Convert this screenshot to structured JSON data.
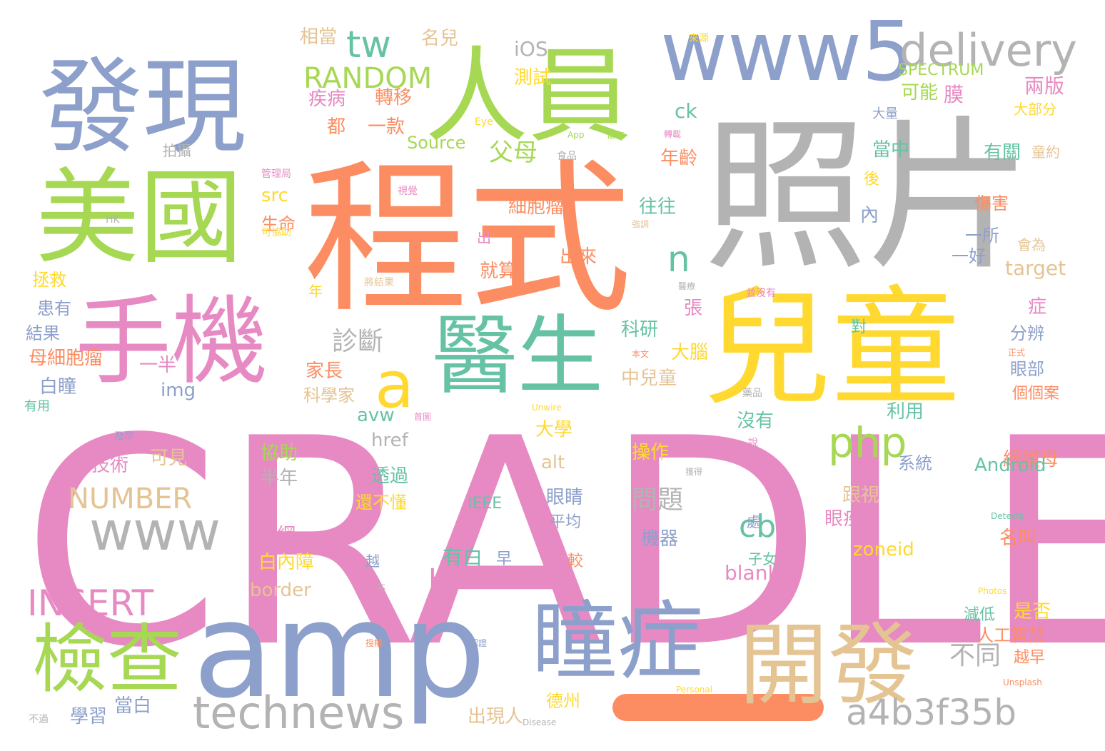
{
  "palette": {
    "background": "#ffffff",
    "pink": "#e78ac3",
    "orange": "#fc8d62",
    "blue": "#8da0cb",
    "green": "#a6d854",
    "teal": "#66c2a5",
    "yellow": "#ffd92f",
    "tan": "#e5c494",
    "gray": "#b3b3b3"
  },
  "words": [
    {
      "text": "CRADLE",
      "color": "pink"
    },
    {
      "text": "程式",
      "color": "orange"
    },
    {
      "text": "照片",
      "color": "gray"
    },
    {
      "text": "兒童",
      "color": "yellow"
    },
    {
      "text": "amp",
      "color": "blue"
    },
    {
      "text": "發現",
      "color": "blue"
    },
    {
      "text": "人員",
      "color": "green"
    },
    {
      "text": "美國",
      "color": "green"
    },
    {
      "text": "手機",
      "color": "pink"
    },
    {
      "text": "醫生",
      "color": "teal"
    },
    {
      "text": "開發",
      "color": "tan"
    },
    {
      "text": "瞳症",
      "color": "blue"
    },
    {
      "text": "www5",
      "color": "blue"
    },
    {
      "text": "檢查",
      "color": "green"
    },
    {
      "text": "delivery",
      "color": "gray"
    },
    {
      "text": "technews",
      "color": "gray"
    },
    {
      "text": "a4b3f35b",
      "color": "gray"
    },
    {
      "text": "www",
      "color": "gray"
    },
    {
      "text": "a",
      "color": "yellow"
    },
    {
      "text": "php",
      "color": "green"
    },
    {
      "text": "tw",
      "color": "teal"
    },
    {
      "text": "INSERT",
      "color": "pink"
    },
    {
      "text": "RANDOM",
      "color": "green"
    },
    {
      "text": "NUMBER",
      "color": "tan"
    },
    {
      "text": "HERE",
      "color": "pink"
    },
    {
      "text": "cb",
      "color": "teal"
    },
    {
      "text": "n",
      "color": "teal"
    },
    {
      "text": "父母",
      "color": "green"
    },
    {
      "text": "診斷",
      "color": "gray"
    },
    {
      "text": "問題",
      "color": "gray"
    },
    {
      "text": "不同",
      "color": "gray"
    },
    {
      "text": "ck",
      "color": "teal"
    },
    {
      "text": "iOS",
      "color": "gray"
    },
    {
      "text": "疾病",
      "color": "pink"
    },
    {
      "text": "都",
      "color": "orange"
    },
    {
      "text": "一款",
      "color": "orange"
    },
    {
      "text": "轉移",
      "color": "orange"
    },
    {
      "text": "測試",
      "color": "yellow"
    },
    {
      "text": "名兒",
      "color": "tan"
    },
    {
      "text": "相當",
      "color": "tan"
    },
    {
      "text": "Source",
      "color": "green"
    },
    {
      "text": "SPECTRUM",
      "color": "green"
    },
    {
      "text": "可能",
      "color": "green"
    },
    {
      "text": "膜",
      "color": "pink"
    },
    {
      "text": "兩版",
      "color": "pink"
    },
    {
      "text": "大部分",
      "color": "yellow"
    },
    {
      "text": "大量",
      "color": "blue"
    },
    {
      "text": "當中",
      "color": "teal"
    },
    {
      "text": "有關",
      "color": "teal"
    },
    {
      "text": "童約",
      "color": "tan"
    },
    {
      "text": "年齡",
      "color": "orange"
    },
    {
      "text": "細胞瘤",
      "color": "orange"
    },
    {
      "text": "往往",
      "color": "teal"
    },
    {
      "text": "src",
      "color": "yellow"
    },
    {
      "text": "生命",
      "color": "orange"
    },
    {
      "text": "拍攝",
      "color": "gray"
    },
    {
      "text": "拯救",
      "color": "yellow"
    },
    {
      "text": "患有",
      "color": "blue"
    },
    {
      "text": "結果",
      "color": "blue"
    },
    {
      "text": "母細胞瘤",
      "color": "orange"
    },
    {
      "text": "白瞳",
      "color": "blue"
    },
    {
      "text": "一半",
      "color": "pink"
    },
    {
      "text": "img",
      "color": "blue"
    },
    {
      "text": "家長",
      "color": "orange"
    },
    {
      "text": "科學家",
      "color": "tan"
    },
    {
      "text": "就算",
      "color": "orange"
    },
    {
      "text": "出來",
      "color": "orange"
    },
    {
      "text": "科研",
      "color": "teal"
    },
    {
      "text": "張",
      "color": "pink"
    },
    {
      "text": "大腦",
      "color": "yellow"
    },
    {
      "text": "中兒童",
      "color": "tan"
    },
    {
      "text": "avw",
      "color": "teal"
    },
    {
      "text": "大學",
      "color": "yellow"
    },
    {
      "text": "href",
      "color": "gray"
    },
    {
      "text": "技術",
      "color": "pink"
    },
    {
      "text": "可見",
      "color": "tan"
    },
    {
      "text": "協助",
      "color": "green"
    },
    {
      "text": "半年",
      "color": "gray"
    },
    {
      "text": "透過",
      "color": "teal"
    },
    {
      "text": "alt",
      "color": "tan"
    },
    {
      "text": "操作",
      "color": "yellow"
    },
    {
      "text": "沒有",
      "color": "teal"
    },
    {
      "text": "網膜母",
      "color": "orange"
    },
    {
      "text": "Android",
      "color": "teal"
    },
    {
      "text": "利用",
      "color": "teal"
    },
    {
      "text": "眼睛",
      "color": "blue"
    },
    {
      "text": "平均",
      "color": "blue"
    },
    {
      "text": "視網",
      "color": "pink"
    },
    {
      "text": "白內障",
      "color": "yellow"
    },
    {
      "text": "有白",
      "color": "teal"
    },
    {
      "text": "早",
      "color": "blue"
    },
    {
      "text": "機器",
      "color": "blue"
    },
    {
      "text": "border",
      "color": "tan"
    },
    {
      "text": "blank",
      "color": "pink"
    },
    {
      "text": "zoneid",
      "color": "yellow"
    },
    {
      "text": "跟視",
      "color": "tan"
    },
    {
      "text": "眼疾",
      "color": "pink"
    },
    {
      "text": "名叫",
      "color": "orange"
    },
    {
      "text": "系統",
      "color": "blue"
    },
    {
      "text": "IEEE",
      "color": "teal"
    },
    {
      "text": "還不懂",
      "color": "yellow"
    },
    {
      "text": "學習",
      "color": "blue"
    },
    {
      "text": "當白",
      "color": "blue"
    },
    {
      "text": "出現人",
      "color": "tan"
    },
    {
      "text": "德州",
      "color": "yellow"
    },
    {
      "text": "是否",
      "color": "yellow"
    },
    {
      "text": "人工智慧",
      "color": "orange"
    },
    {
      "text": "越早",
      "color": "orange"
    },
    {
      "text": "減低",
      "color": "teal"
    },
    {
      "text": "子女",
      "color": "teal"
    },
    {
      "text": "處",
      "color": "blue"
    },
    {
      "text": "較",
      "color": "orange"
    },
    {
      "text": "越",
      "color": "blue"
    },
    {
      "text": "target",
      "color": "tan"
    },
    {
      "text": "症",
      "color": "pink"
    },
    {
      "text": "分辨",
      "color": "blue"
    },
    {
      "text": "眼部",
      "color": "blue"
    },
    {
      "text": "個個案",
      "color": "orange"
    },
    {
      "text": "傷害",
      "color": "orange"
    },
    {
      "text": "一所",
      "color": "blue"
    },
    {
      "text": "一好",
      "color": "blue"
    },
    {
      "text": "會為",
      "color": "tan"
    },
    {
      "text": "對",
      "color": "teal"
    },
    {
      "text": "內",
      "color": "blue"
    },
    {
      "text": "後",
      "color": "yellow"
    },
    {
      "text": "年",
      "color": "yellow"
    },
    {
      "text": "出",
      "color": "pink"
    },
    {
      "text": "有用",
      "color": "teal"
    },
    {
      "text": "來源",
      "color": "yellow"
    },
    {
      "text": "Eye",
      "color": "yellow"
    },
    {
      "text": "App",
      "color": "green"
    },
    {
      "text": "當作",
      "color": "green"
    },
    {
      "text": "食品",
      "color": "gray"
    },
    {
      "text": "轉載",
      "color": "pink"
    },
    {
      "text": "管理局",
      "color": "pink"
    },
    {
      "text": "視覺",
      "color": "pink"
    },
    {
      "text": "HK",
      "color": "gray"
    },
    {
      "text": "可協助",
      "color": "yellow"
    },
    {
      "text": "強調",
      "color": "tan"
    },
    {
      "text": "將結果",
      "color": "tan"
    },
    {
      "text": "醫療",
      "color": "gray"
    },
    {
      "text": "並沒有",
      "color": "pink"
    },
    {
      "text": "本文",
      "color": "orange"
    },
    {
      "text": "正式",
      "color": "orange"
    },
    {
      "text": "藥品",
      "color": "gray"
    },
    {
      "text": "首圖",
      "color": "pink"
    },
    {
      "text": "Unwire",
      "color": "yellow"
    },
    {
      "text": "及早",
      "color": "blue"
    },
    {
      "text": "說",
      "color": "pink"
    },
    {
      "text": "獲得",
      "color": "gray"
    },
    {
      "text": "Detects",
      "color": "teal"
    },
    {
      "text": "Photos",
      "color": "yellow"
    },
    {
      "text": "Personal",
      "color": "yellow"
    },
    {
      "text": "Unsplash",
      "color": "orange"
    },
    {
      "text": "授權",
      "color": "orange"
    },
    {
      "text": "認證",
      "color": "blue"
    },
    {
      "text": "Disease",
      "color": "gray"
    },
    {
      "text": "不過",
      "color": "gray"
    },
    {
      "text": "不",
      "color": "gray"
    }
  ]
}
